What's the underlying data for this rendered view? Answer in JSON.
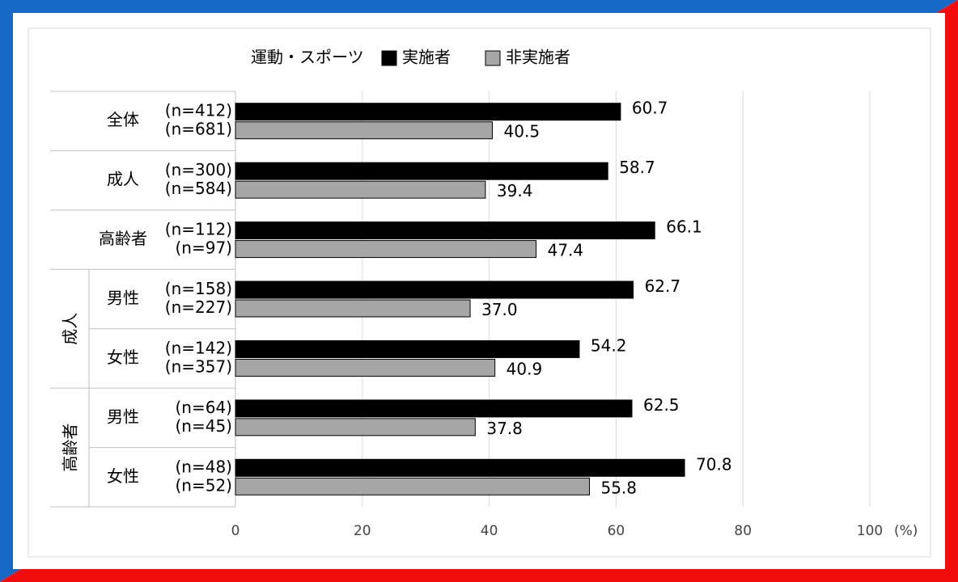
{
  "chart_data": {
    "type": "hbar",
    "legend_title": "運動・スポーツ",
    "categories": [
      "全体",
      "成人",
      "高齢者",
      "男性",
      "女性",
      "男性",
      "女性"
    ],
    "category_groups": [
      null,
      null,
      null,
      "成人",
      "成人",
      "高齢者",
      "高齢者"
    ],
    "series": [
      {
        "name": "実施者",
        "color": "#000000",
        "values": [
          60.7,
          58.7,
          66.1,
          62.7,
          54.2,
          62.5,
          70.8
        ],
        "value_labels": [
          "60.7",
          "58.7",
          "66.1",
          "62.7",
          "54.2",
          "62.5",
          "70.8"
        ],
        "n_labels": [
          "(n=412)",
          "(n=300)",
          "(n=112)",
          "(n=158)",
          "(n=142)",
          "(n=64)",
          "(n=48)"
        ]
      },
      {
        "name": "非実施者",
        "color": "#a6a6a6",
        "values": [
          40.5,
          39.4,
          47.4,
          37.0,
          40.9,
          37.8,
          55.8
        ],
        "value_labels": [
          "40.5",
          "39.4",
          "47.4",
          "37.0",
          "40.9",
          "37.8",
          "55.8"
        ],
        "n_labels": [
          "(n=681)",
          "(n=584)",
          "(n=97)",
          "(n=227)",
          "(n=357)",
          "(n=45)",
          "(n=52)"
        ]
      }
    ],
    "xlim": [
      0,
      100
    ],
    "xticks": [
      0,
      20,
      40,
      60,
      80,
      100
    ],
    "x_unit": "(%)",
    "grid": true
  }
}
